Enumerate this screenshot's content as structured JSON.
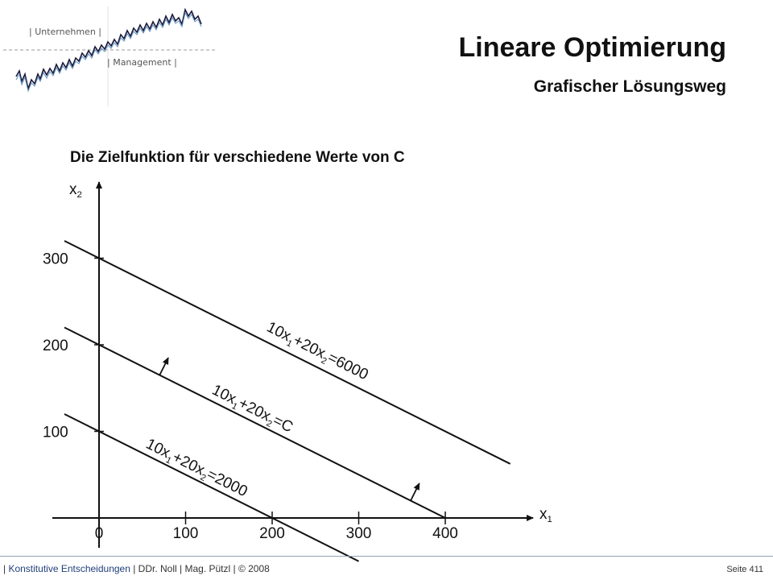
{
  "header": {
    "logo_top": "| Unternehmen |",
    "logo_bottom": "| Management |",
    "title": "Lineare Optimierung",
    "subtitle": "Grafischer Lösungsweg"
  },
  "slide": {
    "heading": "Die Zielfunktion für verschiedene Werte von C"
  },
  "chart_data": {
    "type": "line",
    "x_axis_label": "x1",
    "y_axis_label": "x2",
    "x_ticks": [
      0,
      100,
      200,
      300,
      400
    ],
    "y_ticks": [
      100,
      200,
      300
    ],
    "series": [
      {
        "name": "10x1+20x2=6000",
        "x": [
          -40,
          475
        ],
        "y": [
          320,
          62.5
        ]
      },
      {
        "name": "10x1+20x2=C",
        "x": [
          -40,
          400
        ],
        "y": [
          220,
          0
        ]
      },
      {
        "name": "10x1+20x2=2000",
        "x": [
          -40,
          300
        ],
        "y": [
          120,
          -50
        ]
      }
    ],
    "direction_arrows": [
      {
        "from": [
          70,
          165
        ],
        "to": [
          80,
          185
        ]
      },
      {
        "from": [
          360,
          20
        ],
        "to": [
          370,
          40
        ]
      }
    ],
    "colors": {
      "lines": "#111111",
      "axes": "#111111"
    }
  },
  "footer": {
    "section": "Konstitutive Entscheidungen",
    "authors": "| DDr. Noll | Mag. Pützl | © 2008",
    "page": "Seite 411"
  }
}
